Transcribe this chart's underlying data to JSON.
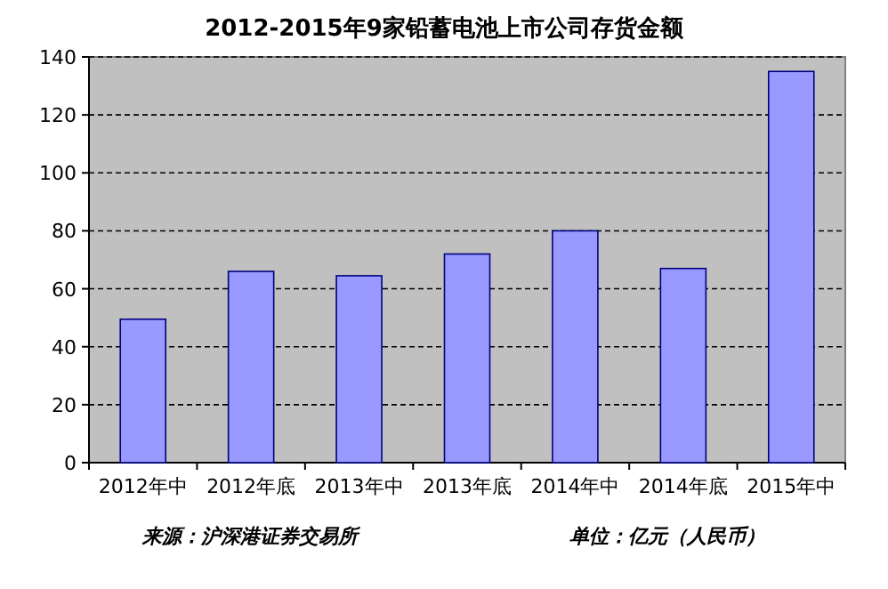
{
  "chart_data": {
    "type": "bar",
    "title": "2012-2015年9家铅蓄电池上市公司存货金额",
    "categories": [
      "2012年中",
      "2012年底",
      "2013年中",
      "2013年底",
      "2014年中",
      "2014年底",
      "2015年中"
    ],
    "values": [
      49.5,
      66,
      64.5,
      72,
      80,
      67,
      135
    ],
    "color": "#9999ff",
    "ylim": [
      0,
      140
    ],
    "yticks": [
      0,
      20,
      40,
      60,
      80,
      100,
      120,
      140
    ],
    "grid": "y",
    "annotations": [
      "来源：沪深港证券交易所",
      "单位：亿元（人民币）"
    ]
  }
}
